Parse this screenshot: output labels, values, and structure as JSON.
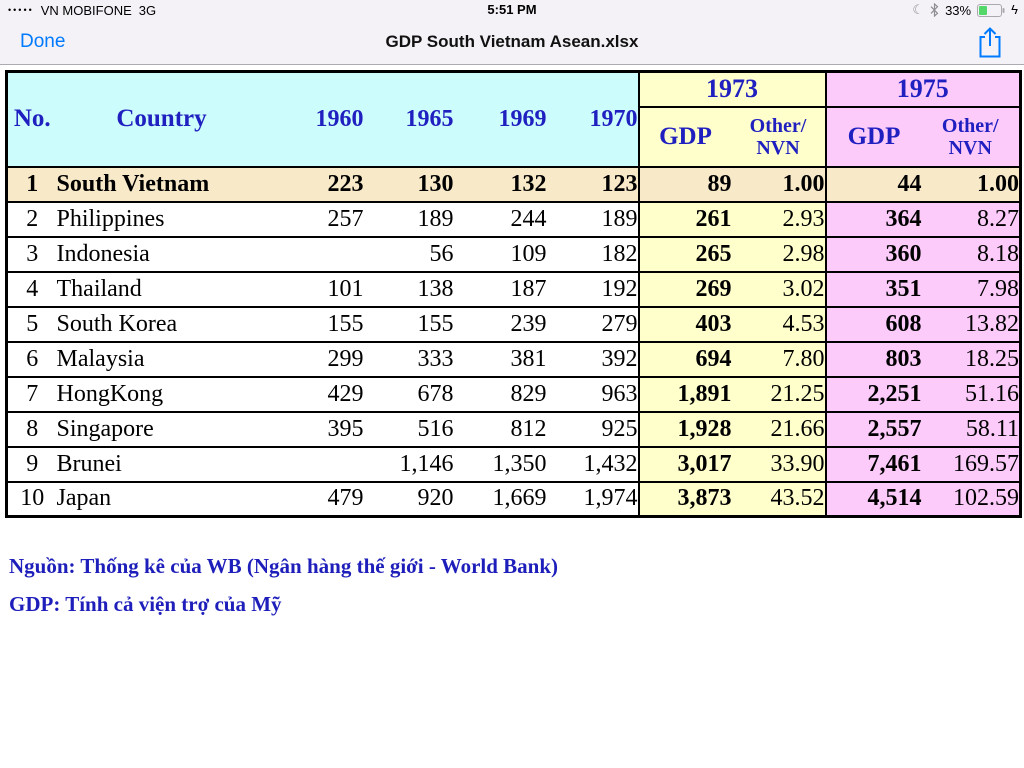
{
  "status_bar": {
    "signal_dots": "•••••",
    "carrier": "VN MOBIFONE",
    "network": "3G",
    "time": "5:51 PM",
    "battery_percent": "33%"
  },
  "icons": {
    "moon": "☾",
    "bolt": "ϟ"
  },
  "nav_bar": {
    "done_label": "Done",
    "title": "GDP South Vietnam Asean.xlsx"
  },
  "table": {
    "header": {
      "no": "No.",
      "country": "Country",
      "years": [
        "1960",
        "1965",
        "1969",
        "1970"
      ],
      "group_1973": "1973",
      "group_1975": "1975",
      "gdp": "GDP",
      "other_line1": "Other/",
      "other_line2": "NVN"
    },
    "rows": [
      {
        "cells": [
          "1",
          "South Vietnam",
          "223",
          "130",
          "132",
          "123",
          "89",
          "1.00",
          "44",
          "1.00"
        ],
        "styles": [
          "b",
          "b",
          "m",
          "m",
          "m",
          "m",
          "m",
          "m",
          "m",
          "m"
        ],
        "highlight": true
      },
      {
        "cells": [
          "2",
          "Philippines",
          "257",
          "189",
          "244",
          "189",
          "261",
          "2.93",
          "364",
          "8.27"
        ],
        "styles": [
          "",
          "",
          "c",
          "c",
          "c",
          "c",
          "g",
          "p",
          "g",
          "p"
        ],
        "highlight": false
      },
      {
        "cells": [
          "3",
          "Indonesia",
          "",
          "56",
          "109",
          "182",
          "265",
          "2.98",
          "360",
          "8.18"
        ],
        "styles": [
          "",
          "",
          "",
          "k",
          "k",
          "c",
          "g",
          "p",
          "g",
          "p"
        ],
        "highlight": false
      },
      {
        "cells": [
          "4",
          "Thailand",
          "101",
          "138",
          "187",
          "192",
          "269",
          "3.02",
          "351",
          "7.98"
        ],
        "styles": [
          "",
          "",
          "k",
          "c",
          "c",
          "c",
          "g",
          "p",
          "g",
          "p"
        ],
        "highlight": false
      },
      {
        "cells": [
          "5",
          "South Korea",
          "155",
          "155",
          "239",
          "279",
          "403",
          "4.53",
          "608",
          "13.82"
        ],
        "styles": [
          "",
          "",
          "k",
          "c",
          "c",
          "c",
          "g",
          "p",
          "g",
          "p"
        ],
        "highlight": false
      },
      {
        "cells": [
          "6",
          "Malaysia",
          "299",
          "333",
          "381",
          "392",
          "694",
          "7.80",
          "803",
          "18.25"
        ],
        "styles": [
          "",
          "",
          "c",
          "c",
          "c",
          "c",
          "g",
          "p",
          "g",
          "p"
        ],
        "highlight": false
      },
      {
        "cells": [
          "7",
          "HongKong",
          "429",
          "678",
          "829",
          "963",
          "1,891",
          "21.25",
          "2,251",
          "51.16"
        ],
        "styles": [
          "",
          "",
          "c",
          "c",
          "c",
          "c",
          "g",
          "p",
          "g",
          "p"
        ],
        "highlight": false
      },
      {
        "cells": [
          "8",
          "Singapore",
          "395",
          "516",
          "812",
          "925",
          "1,928",
          "21.66",
          "2,557",
          "58.11"
        ],
        "styles": [
          "",
          "",
          "c",
          "c",
          "c",
          "c",
          "g",
          "p",
          "g",
          "p"
        ],
        "highlight": false
      },
      {
        "cells": [
          "9",
          "Brunei",
          "",
          "1,146",
          "1,350",
          "1,432",
          "3,017",
          "33.90",
          "7,461",
          "169.57"
        ],
        "styles": [
          "",
          "",
          "",
          "c",
          "c",
          "c",
          "g",
          "p",
          "g",
          "p"
        ],
        "highlight": false
      },
      {
        "cells": [
          "10",
          "Japan",
          "479",
          "920",
          "1,669",
          "1,974",
          "3,873",
          "43.52",
          "4,514",
          "102.59"
        ],
        "styles": [
          "",
          "",
          "c",
          "c",
          "c",
          "c",
          "g",
          "p",
          "g",
          "p"
        ],
        "highlight": false
      }
    ]
  },
  "notes": [
    "Nguồn: Thống kê của WB (Ngân hàng thế giới - World Bank)",
    "GDP: Tính cả viện trợ của Mỹ"
  ],
  "colors": {
    "accent_blue": "#007AFF",
    "header_text_blue": "#2020C0",
    "magenta_value": "#F000F0",
    "cyan_value": "#2FA7E0",
    "purple_value": "#7A2FC0",
    "cyan_header_bg": "#CCFCFC",
    "yellow_bg": "#FFFFCC",
    "pink_bg": "#FCCBFA",
    "tan_row_bg": "#F8EAC8",
    "battery_green": "#53D769"
  }
}
